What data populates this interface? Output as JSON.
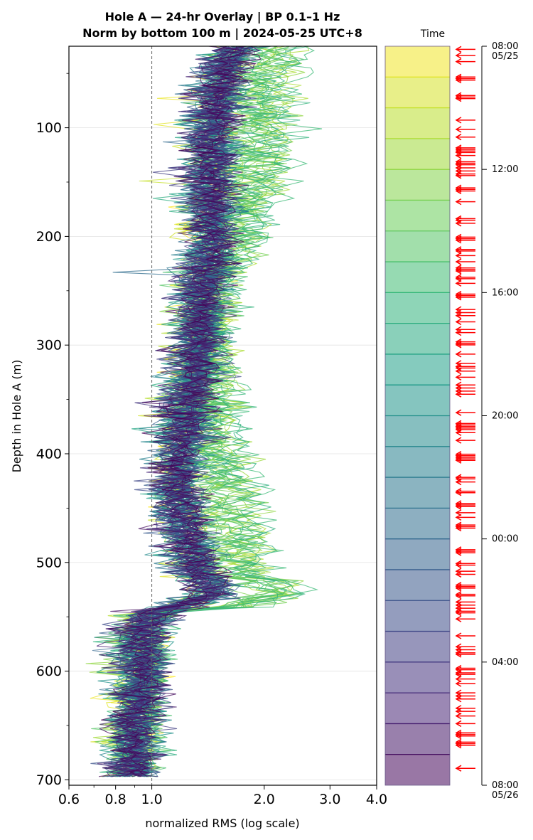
{
  "chart_data": {
    "type": "line",
    "title_line1": "Hole A — 24-hr Overlay  |  BP 0.1–1 Hz",
    "title_line2": "Norm by bottom 100 m  |  2024-05-25 UTC+8",
    "xlabel": "normalized RMS  (log scale)",
    "ylabel": "Depth in Hole A (m)",
    "xscale": "log",
    "xlim": [
      0.6,
      4.0
    ],
    "ylim": [
      705,
      25
    ],
    "xticks": [
      {
        "value": 0.6,
        "label": "0.6"
      },
      {
        "value": 0.8,
        "label": "0.8"
      },
      {
        "value": 1.0,
        "label": "1.0"
      },
      {
        "value": 2.0,
        "label": "2.0"
      },
      {
        "value": 3.0,
        "label": "3.0"
      },
      {
        "value": 4.0,
        "label": "4.0"
      }
    ],
    "yticks": [
      {
        "value": 100,
        "label": "100"
      },
      {
        "value": 200,
        "label": "200"
      },
      {
        "value": 300,
        "label": "300"
      },
      {
        "value": 400,
        "label": "400"
      },
      {
        "value": 500,
        "label": "500"
      },
      {
        "value": 600,
        "label": "600"
      },
      {
        "value": 700,
        "label": "700"
      }
    ],
    "grid": "horizontal",
    "reference_line_x": 1.0,
    "depth_range": [
      25,
      700
    ],
    "series_count": 72,
    "base_profile": [
      [
        25,
        1.7
      ],
      [
        50,
        1.55
      ],
      [
        100,
        1.45
      ],
      [
        150,
        1.45
      ],
      [
        200,
        1.45
      ],
      [
        250,
        1.35
      ],
      [
        300,
        1.35
      ],
      [
        350,
        1.25
      ],
      [
        400,
        1.2
      ],
      [
        450,
        1.2
      ],
      [
        500,
        1.3
      ],
      [
        530,
        1.45
      ],
      [
        545,
        1.05
      ],
      [
        560,
        0.95
      ],
      [
        600,
        0.95
      ],
      [
        650,
        0.9
      ],
      [
        700,
        0.9
      ]
    ],
    "colorbar": {
      "label": "Time",
      "colormap": "viridis",
      "alpha": 0.55,
      "levels": 24,
      "ticks": [
        {
          "hours": 0,
          "label": "08:00",
          "sublabel": "05/25"
        },
        {
          "hours": 4,
          "label": "12:00",
          "sublabel": ""
        },
        {
          "hours": 8,
          "label": "16:00",
          "sublabel": ""
        },
        {
          "hours": 12,
          "label": "20:00",
          "sublabel": ""
        },
        {
          "hours": 16,
          "label": "00:00",
          "sublabel": ""
        },
        {
          "hours": 20,
          "label": "04:00",
          "sublabel": ""
        },
        {
          "hours": 24,
          "label": "08:00",
          "sublabel": "05/26"
        }
      ],
      "arrow_color": "#ff0000",
      "marker_hours": [
        0.1,
        0.3,
        0.5,
        1.0,
        1.05,
        1.1,
        1.6,
        1.65,
        1.7,
        2.4,
        2.7,
        2.95,
        3.3,
        3.35,
        3.4,
        3.45,
        3.55,
        3.75,
        3.8,
        3.85,
        3.95,
        4.05,
        4.15,
        4.2,
        4.6,
        4.65,
        4.7,
        5.05,
        5.6,
        5.65,
        5.75,
        6.2,
        6.25,
        6.3,
        6.6,
        6.65,
        6.8,
        7.0,
        7.2,
        7.25,
        7.3,
        7.5,
        7.55,
        7.7,
        8.05,
        8.1,
        8.15,
        8.55,
        8.65,
        8.75,
        8.95,
        9.2,
        9.3,
        9.6,
        9.65,
        9.7,
        10.0,
        10.3,
        10.4,
        10.45,
        10.55,
        10.75,
        11.0,
        11.1,
        11.2,
        11.3,
        11.9,
        12.25,
        12.3,
        12.35,
        12.4,
        12.45,
        12.55,
        12.8,
        13.25,
        13.3,
        13.35,
        13.4,
        13.45,
        14.0,
        14.05,
        14.15,
        14.45,
        14.5,
        14.85,
        14.9,
        14.95,
        15.15,
        15.3,
        15.55,
        15.6,
        15.65,
        16.35,
        16.4,
        16.45,
        16.8,
        16.85,
        17.05,
        17.15,
        17.5,
        17.55,
        17.6,
        17.8,
        17.85,
        18.05,
        18.15,
        18.25,
        18.35,
        18.4,
        18.6,
        19.15,
        19.5,
        19.6,
        19.7,
        19.75,
        20.2,
        20.25,
        20.35,
        20.4,
        20.55,
        20.7,
        21.0,
        21.1,
        21.2,
        21.5,
        21.6,
        21.75,
        22.0,
        22.3,
        22.35,
        22.4,
        22.6,
        22.65,
        22.7,
        23.45
      ]
    }
  }
}
